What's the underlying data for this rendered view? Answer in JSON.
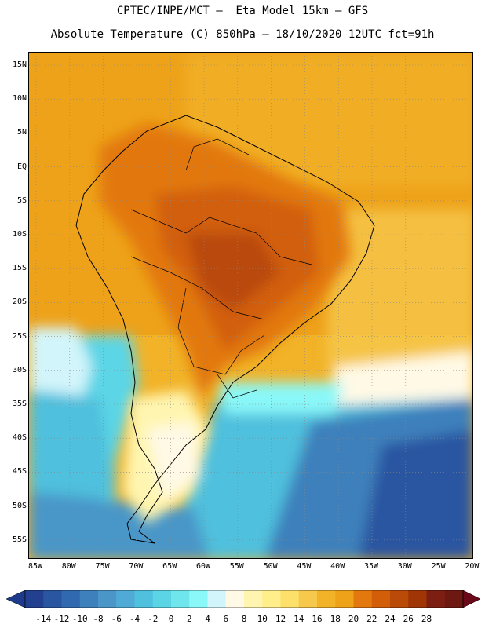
{
  "header": {
    "line1": "CPTEC/INPE/MCT –  Eta Model 15km – GFS",
    "line2": "Absolute Temperature (C) 850hPa – 18/10/2020 12UTC fct=91h"
  },
  "map": {
    "lat_labels": [
      "15N",
      "10N",
      "5N",
      "EQ",
      "5S",
      "10S",
      "15S",
      "20S",
      "25S",
      "30S",
      "35S",
      "40S",
      "45S",
      "50S",
      "55S"
    ],
    "lon_labels": [
      "85W",
      "80W",
      "75W",
      "70W",
      "65W",
      "60W",
      "55W",
      "50W",
      "45W",
      "40W",
      "35W",
      "30W",
      "25W",
      "20W"
    ]
  },
  "colorbar": {
    "labels": [
      "-14",
      "-12",
      "-10",
      "-8",
      "-6",
      "-4",
      "-2",
      "0",
      "2",
      "4",
      "6",
      "8",
      "10",
      "12",
      "14",
      "16",
      "18",
      "20",
      "22",
      "24",
      "26",
      "28"
    ],
    "colors": [
      "#233f8f",
      "#2a55a0",
      "#3069b0",
      "#3d80bc",
      "#4a96c8",
      "#4fabd5",
      "#4fc0dd",
      "#5bd5e6",
      "#6fe6ec",
      "#8af8f8",
      "#d2f5fb",
      "#fff9e6",
      "#fff5b0",
      "#ffee8a",
      "#fde06a",
      "#f6c84c",
      "#f2b328",
      "#eea21a",
      "#e2780e",
      "#d25e0a",
      "#b94a08",
      "#a03606",
      "#7d1e12",
      "#6e1812"
    ],
    "under_color": "#1e3a8a",
    "over_color": "#6a0a18"
  }
}
